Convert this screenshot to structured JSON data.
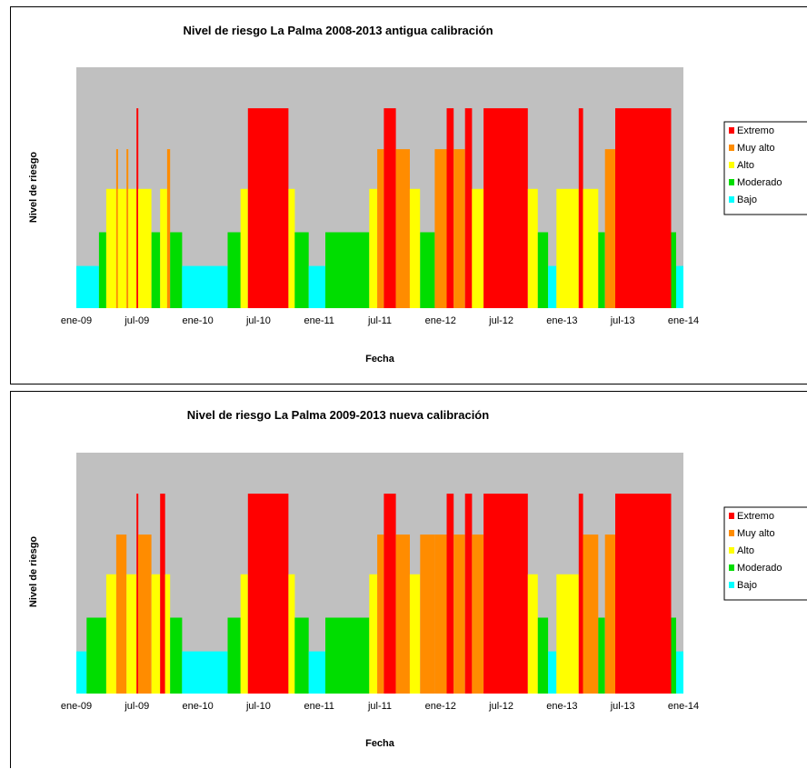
{
  "chart_data": [
    {
      "type": "bar",
      "title": "Nivel de riesgo La Palma 2008-2013 antigua calibración",
      "xlabel": "Fecha",
      "ylabel": "Nivel de riesgo",
      "x_ticks": [
        "ene-09",
        "jul-09",
        "ene-10",
        "jul-10",
        "ene-11",
        "jul-11",
        "ene-12",
        "jul-12",
        "ene-13",
        "jul-13",
        "ene-14"
      ],
      "legend": [
        "Extremo",
        "Muy alto",
        "Alto",
        "Moderado",
        "Bajo"
      ],
      "legend_position": "right",
      "colors": {
        "Extremo": "#ff0000",
        "Muy alto": "#ff8c00",
        "Alto": "#ffff00",
        "Moderado": "#00dd00",
        "Bajo": "#00ffff"
      },
      "plot_background": "#c0c0c0",
      "level_values": {
        "Bajo": 1,
        "Moderado": 2,
        "Alto": 3,
        "Muy alto": 4,
        "Extremo": 5
      },
      "periods": [
        {
          "start": "2009-01-01",
          "end": "2009-03-10",
          "level": 1
        },
        {
          "start": "2009-03-10",
          "end": "2009-04-01",
          "level": 2
        },
        {
          "start": "2009-04-01",
          "end": "2009-05-01",
          "level": 3
        },
        {
          "start": "2009-05-01",
          "end": "2009-05-06",
          "level": 4
        },
        {
          "start": "2009-05-06",
          "end": "2009-06-01",
          "level": 3
        },
        {
          "start": "2009-06-01",
          "end": "2009-06-06",
          "level": 4
        },
        {
          "start": "2009-06-06",
          "end": "2009-07-01",
          "level": 3
        },
        {
          "start": "2009-07-01",
          "end": "2009-07-06",
          "level": 5
        },
        {
          "start": "2009-07-06",
          "end": "2009-08-15",
          "level": 3
        },
        {
          "start": "2009-08-15",
          "end": "2009-09-10",
          "level": 2
        },
        {
          "start": "2009-09-10",
          "end": "2009-10-01",
          "level": 3
        },
        {
          "start": "2009-10-01",
          "end": "2009-10-10",
          "level": 4
        },
        {
          "start": "2009-10-10",
          "end": "2009-11-15",
          "level": 2
        },
        {
          "start": "2009-11-15",
          "end": "2010-04-01",
          "level": 1
        },
        {
          "start": "2010-04-01",
          "end": "2010-05-10",
          "level": 2
        },
        {
          "start": "2010-05-10",
          "end": "2010-06-01",
          "level": 3
        },
        {
          "start": "2010-06-01",
          "end": "2010-10-01",
          "level": 5
        },
        {
          "start": "2010-10-01",
          "end": "2010-10-20",
          "level": 3
        },
        {
          "start": "2010-10-20",
          "end": "2010-12-01",
          "level": 2
        },
        {
          "start": "2010-12-01",
          "end": "2011-01-20",
          "level": 1
        },
        {
          "start": "2011-01-20",
          "end": "2011-06-01",
          "level": 2
        },
        {
          "start": "2011-06-01",
          "end": "2011-06-25",
          "level": 3
        },
        {
          "start": "2011-06-25",
          "end": "2011-07-15",
          "level": 4
        },
        {
          "start": "2011-07-15",
          "end": "2011-08-20",
          "level": 5
        },
        {
          "start": "2011-08-20",
          "end": "2011-10-01",
          "level": 4
        },
        {
          "start": "2011-10-01",
          "end": "2011-11-01",
          "level": 3
        },
        {
          "start": "2011-11-01",
          "end": "2011-12-15",
          "level": 2
        },
        {
          "start": "2011-12-15",
          "end": "2012-01-20",
          "level": 4
        },
        {
          "start": "2012-01-20",
          "end": "2012-02-10",
          "level": 5
        },
        {
          "start": "2012-02-10",
          "end": "2012-03-15",
          "level": 4
        },
        {
          "start": "2012-03-15",
          "end": "2012-04-05",
          "level": 5
        },
        {
          "start": "2012-04-05",
          "end": "2012-05-10",
          "level": 3
        },
        {
          "start": "2012-05-10",
          "end": "2012-09-20",
          "level": 5
        },
        {
          "start": "2012-09-20",
          "end": "2012-10-20",
          "level": 3
        },
        {
          "start": "2012-10-20",
          "end": "2012-11-20",
          "level": 2
        },
        {
          "start": "2012-11-20",
          "end": "2012-12-15",
          "level": 1
        },
        {
          "start": "2012-12-15",
          "end": "2013-02-20",
          "level": 3
        },
        {
          "start": "2013-02-20",
          "end": "2013-03-05",
          "level": 5
        },
        {
          "start": "2013-03-05",
          "end": "2013-04-20",
          "level": 3
        },
        {
          "start": "2013-04-20",
          "end": "2013-05-10",
          "level": 2
        },
        {
          "start": "2013-05-10",
          "end": "2013-06-10",
          "level": 4
        },
        {
          "start": "2013-06-10",
          "end": "2013-11-25",
          "level": 5
        },
        {
          "start": "2013-11-25",
          "end": "2013-12-10",
          "level": 2
        },
        {
          "start": "2013-12-10",
          "end": "2014-01-01",
          "level": 1
        }
      ]
    },
    {
      "type": "bar",
      "title": "Nivel de riesgo La Palma 2009-2013 nueva calibración",
      "xlabel": "Fecha",
      "ylabel": "Nivel de riesgo",
      "x_ticks": [
        "ene-09",
        "jul-09",
        "ene-10",
        "jul-10",
        "ene-11",
        "jul-11",
        "ene-12",
        "jul-12",
        "ene-13",
        "jul-13",
        "ene-14"
      ],
      "legend": [
        "Extremo",
        "Muy alto",
        "Alto",
        "Moderado",
        "Bajo"
      ],
      "legend_position": "right",
      "colors": {
        "Extremo": "#ff0000",
        "Muy alto": "#ff8c00",
        "Alto": "#ffff00",
        "Moderado": "#00dd00",
        "Bajo": "#00ffff"
      },
      "plot_background": "#c0c0c0",
      "level_values": {
        "Bajo": 1,
        "Moderado": 2,
        "Alto": 3,
        "Muy alto": 4,
        "Extremo": 5
      },
      "periods": [
        {
          "start": "2009-01-01",
          "end": "2009-02-01",
          "level": 1
        },
        {
          "start": "2009-02-01",
          "end": "2009-04-01",
          "level": 2
        },
        {
          "start": "2009-04-01",
          "end": "2009-05-01",
          "level": 3
        },
        {
          "start": "2009-05-01",
          "end": "2009-06-01",
          "level": 4
        },
        {
          "start": "2009-06-01",
          "end": "2009-07-01",
          "level": 3
        },
        {
          "start": "2009-07-01",
          "end": "2009-07-06",
          "level": 5
        },
        {
          "start": "2009-07-06",
          "end": "2009-08-15",
          "level": 4
        },
        {
          "start": "2009-08-15",
          "end": "2009-09-10",
          "level": 3
        },
        {
          "start": "2009-09-10",
          "end": "2009-09-25",
          "level": 5
        },
        {
          "start": "2009-09-25",
          "end": "2009-10-10",
          "level": 3
        },
        {
          "start": "2009-10-10",
          "end": "2009-11-15",
          "level": 2
        },
        {
          "start": "2009-11-15",
          "end": "2010-04-01",
          "level": 1
        },
        {
          "start": "2010-04-01",
          "end": "2010-05-10",
          "level": 2
        },
        {
          "start": "2010-05-10",
          "end": "2010-06-01",
          "level": 3
        },
        {
          "start": "2010-06-01",
          "end": "2010-10-01",
          "level": 5
        },
        {
          "start": "2010-10-01",
          "end": "2010-10-20",
          "level": 3
        },
        {
          "start": "2010-10-20",
          "end": "2010-12-01",
          "level": 2
        },
        {
          "start": "2010-12-01",
          "end": "2011-01-20",
          "level": 1
        },
        {
          "start": "2011-01-20",
          "end": "2011-06-01",
          "level": 2
        },
        {
          "start": "2011-06-01",
          "end": "2011-06-25",
          "level": 3
        },
        {
          "start": "2011-06-25",
          "end": "2011-07-15",
          "level": 4
        },
        {
          "start": "2011-07-15",
          "end": "2011-08-20",
          "level": 5
        },
        {
          "start": "2011-08-20",
          "end": "2011-10-01",
          "level": 4
        },
        {
          "start": "2011-10-01",
          "end": "2011-11-01",
          "level": 3
        },
        {
          "start": "2011-11-01",
          "end": "2011-12-15",
          "level": 4
        },
        {
          "start": "2011-12-15",
          "end": "2012-01-20",
          "level": 4
        },
        {
          "start": "2012-01-20",
          "end": "2012-02-10",
          "level": 5
        },
        {
          "start": "2012-02-10",
          "end": "2012-03-15",
          "level": 4
        },
        {
          "start": "2012-03-15",
          "end": "2012-04-05",
          "level": 5
        },
        {
          "start": "2012-04-05",
          "end": "2012-05-10",
          "level": 4
        },
        {
          "start": "2012-05-10",
          "end": "2012-09-20",
          "level": 5
        },
        {
          "start": "2012-09-20",
          "end": "2012-10-20",
          "level": 3
        },
        {
          "start": "2012-10-20",
          "end": "2012-11-20",
          "level": 2
        },
        {
          "start": "2012-11-20",
          "end": "2012-12-15",
          "level": 1
        },
        {
          "start": "2012-12-15",
          "end": "2013-02-20",
          "level": 3
        },
        {
          "start": "2013-02-20",
          "end": "2013-03-05",
          "level": 5
        },
        {
          "start": "2013-03-05",
          "end": "2013-04-20",
          "level": 4
        },
        {
          "start": "2013-04-20",
          "end": "2013-05-10",
          "level": 2
        },
        {
          "start": "2013-05-10",
          "end": "2013-06-10",
          "level": 4
        },
        {
          "start": "2013-06-10",
          "end": "2013-11-25",
          "level": 5
        },
        {
          "start": "2013-11-25",
          "end": "2013-12-10",
          "level": 2
        },
        {
          "start": "2013-12-10",
          "end": "2014-01-01",
          "level": 1
        }
      ]
    }
  ]
}
